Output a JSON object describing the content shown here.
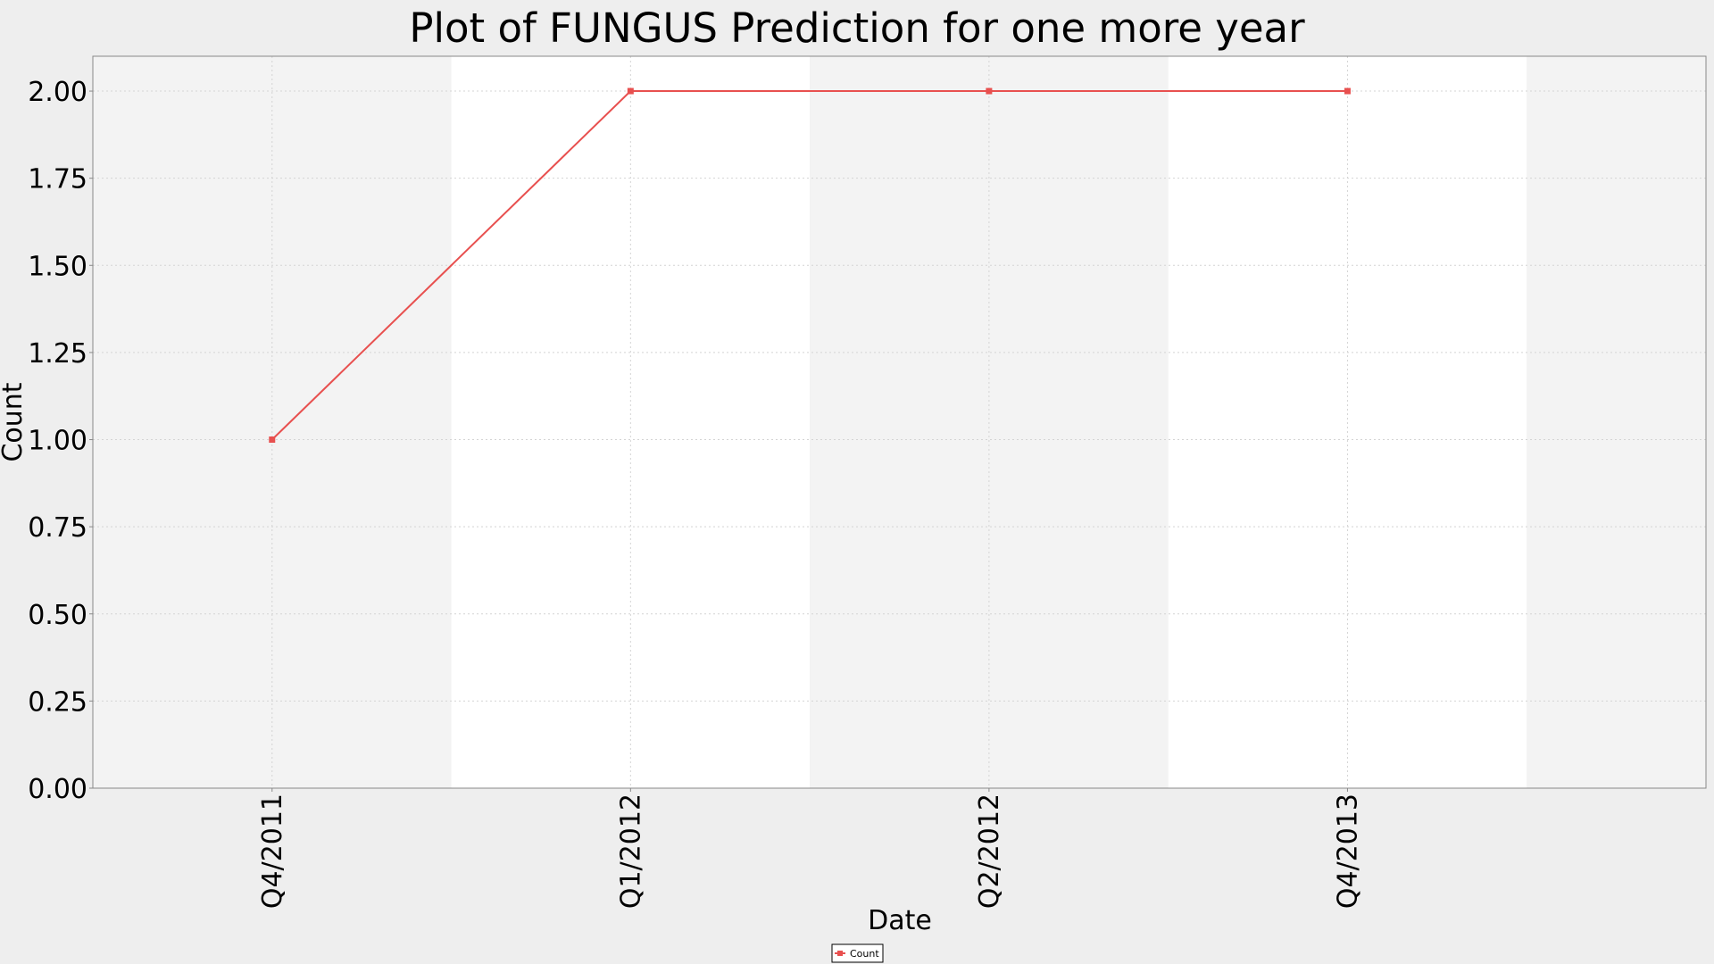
{
  "chart_data": {
    "type": "line",
    "title": "Plot of FUNGUS Prediction for one more year",
    "xlabel": "Date",
    "ylabel": "Count",
    "categories": [
      "Q4/2011",
      "Q1/2012",
      "Q2/2012",
      "Q4/2013"
    ],
    "series": [
      {
        "name": "Count",
        "values": [
          1,
          2,
          2,
          2
        ],
        "color": "#e8504f"
      }
    ],
    "ylim": [
      0,
      2.1
    ],
    "yticks": [
      0.0,
      0.25,
      0.5,
      0.75,
      1.0,
      1.25,
      1.5,
      1.75,
      2.0
    ],
    "ytick_labels": [
      "0.00",
      "0.25",
      "0.50",
      "0.75",
      "1.00",
      "1.25",
      "1.50",
      "1.75",
      "2.00"
    ],
    "grid": true,
    "legend": "bottom-center",
    "band_colors": [
      "#f3f3f3",
      "#ffffff"
    ],
    "background_color": "#eeeeee"
  }
}
